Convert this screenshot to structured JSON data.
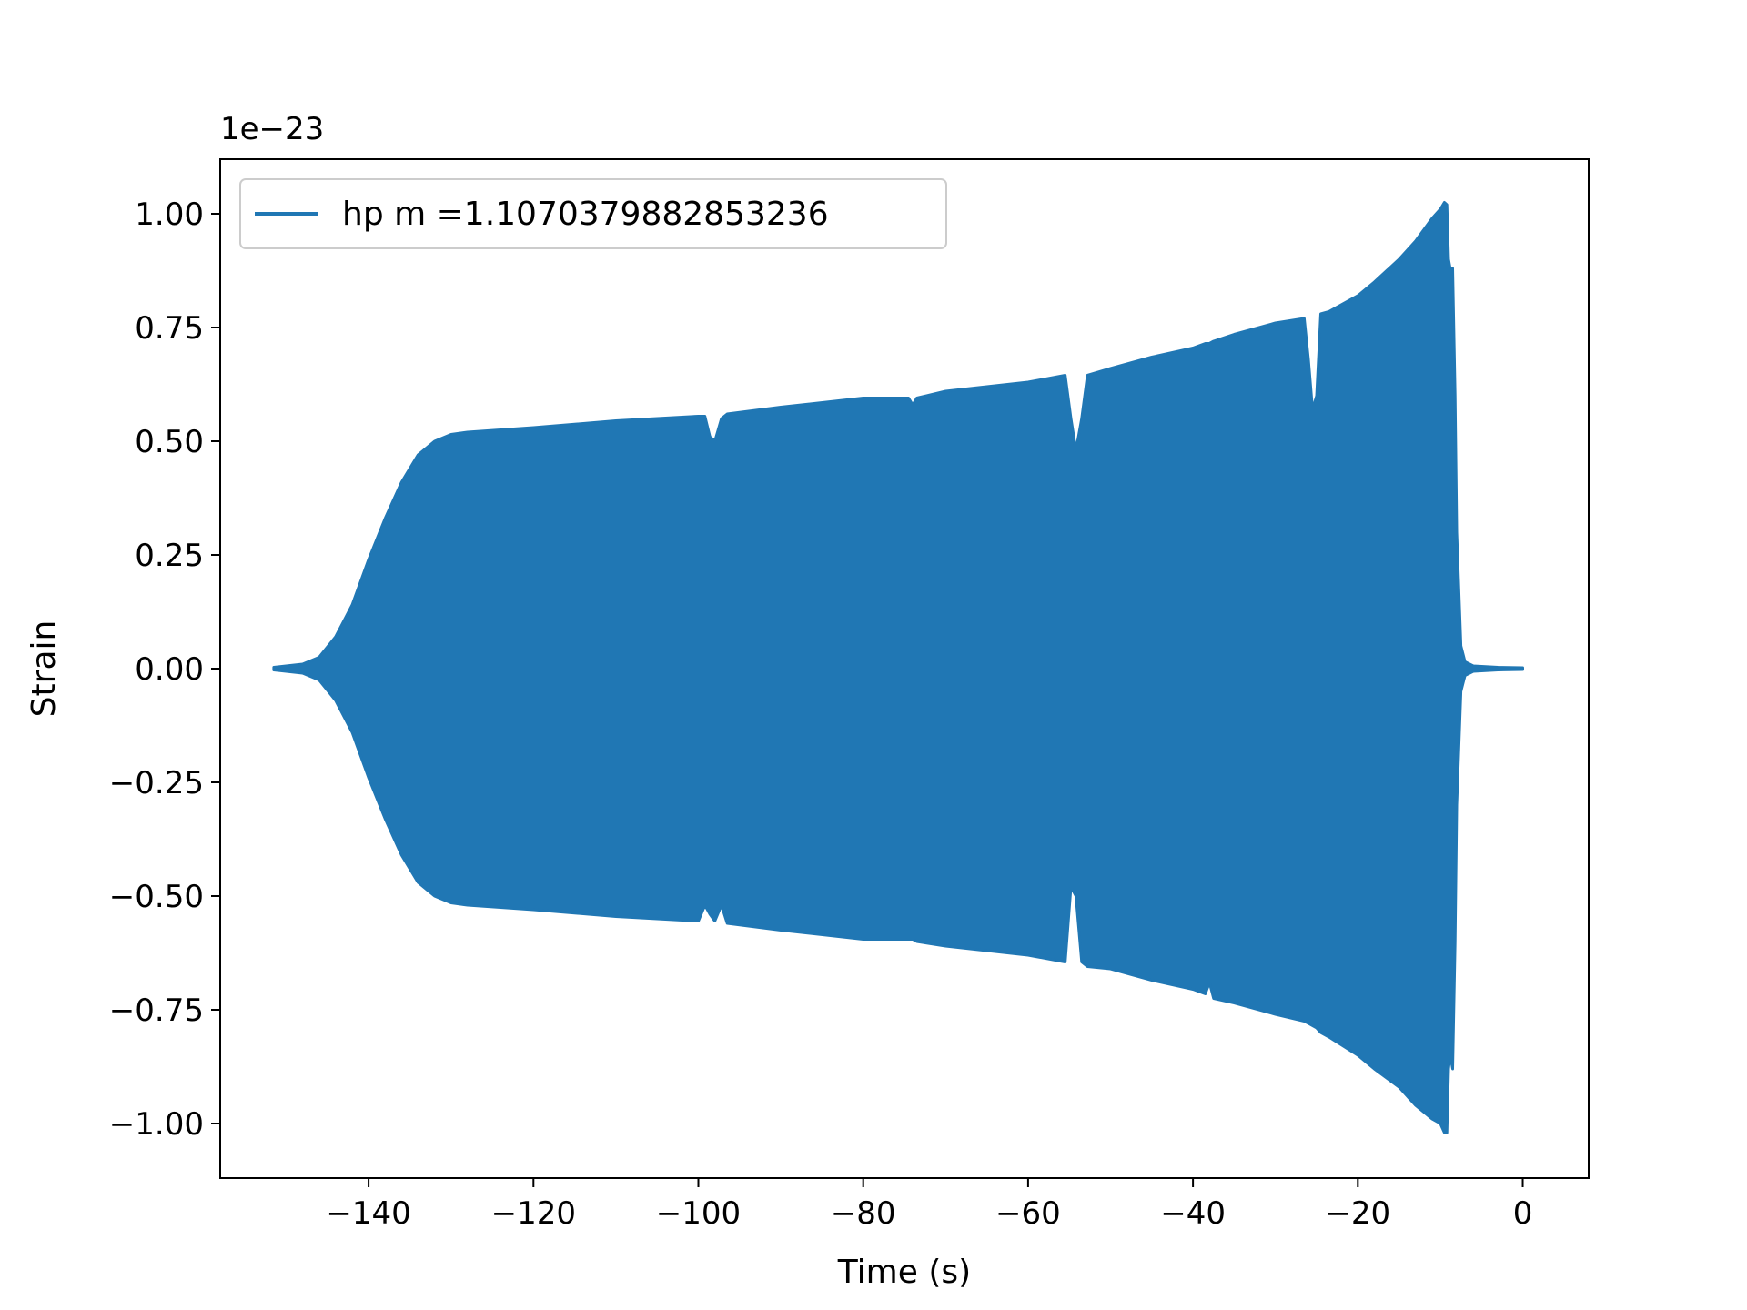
{
  "chart_data": {
    "type": "area",
    "title": "",
    "xlabel": "Time (s)",
    "ylabel": "Strain",
    "y_offset_label": "1e−23",
    "y_scale": 1e-23,
    "xlim": [
      -158,
      8
    ],
    "ylim": [
      -1.12,
      1.12
    ],
    "x_ticks": [
      -140,
      -120,
      -100,
      -80,
      -60,
      -40,
      -20,
      0
    ],
    "x_tick_labels": [
      "−140",
      "−120",
      "−100",
      "−80",
      "−60",
      "−40",
      "−20",
      "0"
    ],
    "y_ticks": [
      1.0,
      0.75,
      0.5,
      0.25,
      0.0,
      -0.25,
      -0.5,
      -0.75,
      -1.0
    ],
    "y_tick_labels": [
      "1.00",
      "0.75",
      "0.50",
      "0.25",
      "0.00",
      "−0.25",
      "−0.50",
      "−0.75",
      "−1.00"
    ],
    "grid": false,
    "legend_position": "top-left",
    "series": [
      {
        "name": "hp m =1.1070379882853236",
        "color": "#2077b4",
        "x": [
          -151.5,
          -148,
          -146,
          -144,
          -142,
          -140,
          -138,
          -136,
          -134,
          -132,
          -130,
          -128,
          -120,
          -110,
          -100,
          -99.2,
          -98.6,
          -98.0,
          -97.2,
          -96.5,
          -90,
          -80,
          -74.5,
          -74.0,
          -73.5,
          -70,
          -60,
          -55.5,
          -54.8,
          -54.2,
          -53.5,
          -52.8,
          -50,
          -45,
          -40,
          -38.5,
          -38.0,
          -37.5,
          -35,
          -30,
          -26.5,
          -26.0,
          -25.5,
          -25.0,
          -24.5,
          -23.5,
          -20,
          -18,
          -15,
          -13,
          -11,
          -10,
          -9.5,
          -9.2,
          -9.0,
          -8.8,
          -8.5,
          -8.2,
          -8.0,
          -7.5,
          -7.0,
          -6.0,
          -3.0,
          0.0
        ],
        "upper": [
          0.003,
          0.01,
          0.025,
          0.07,
          0.14,
          0.24,
          0.33,
          0.41,
          0.47,
          0.5,
          0.515,
          0.52,
          0.53,
          0.545,
          0.555,
          0.555,
          0.51,
          0.5,
          0.55,
          0.56,
          0.575,
          0.595,
          0.595,
          0.58,
          0.595,
          0.61,
          0.63,
          0.645,
          0.55,
          0.48,
          0.55,
          0.645,
          0.66,
          0.685,
          0.705,
          0.715,
          0.715,
          0.72,
          0.735,
          0.76,
          0.77,
          0.68,
          0.57,
          0.6,
          0.78,
          0.785,
          0.82,
          0.85,
          0.9,
          0.94,
          0.99,
          1.01,
          1.025,
          1.02,
          0.9,
          0.88,
          0.88,
          0.6,
          0.3,
          0.05,
          0.015,
          0.006,
          0.003,
          0.002
        ],
        "lower": [
          -0.003,
          -0.01,
          -0.025,
          -0.07,
          -0.14,
          -0.24,
          -0.33,
          -0.41,
          -0.47,
          -0.5,
          -0.515,
          -0.52,
          -0.53,
          -0.545,
          -0.555,
          -0.52,
          -0.54,
          -0.555,
          -0.52,
          -0.56,
          -0.575,
          -0.595,
          -0.595,
          -0.595,
          -0.6,
          -0.61,
          -0.63,
          -0.645,
          -0.48,
          -0.5,
          -0.645,
          -0.655,
          -0.66,
          -0.685,
          -0.705,
          -0.715,
          -0.69,
          -0.725,
          -0.735,
          -0.76,
          -0.775,
          -0.78,
          -0.785,
          -0.79,
          -0.8,
          -0.81,
          -0.85,
          -0.88,
          -0.92,
          -0.96,
          -0.99,
          -1.0,
          -1.02,
          -1.02,
          -0.88,
          -0.85,
          -0.88,
          -0.6,
          -0.3,
          -0.05,
          -0.015,
          -0.006,
          -0.003,
          -0.002
        ]
      }
    ]
  }
}
